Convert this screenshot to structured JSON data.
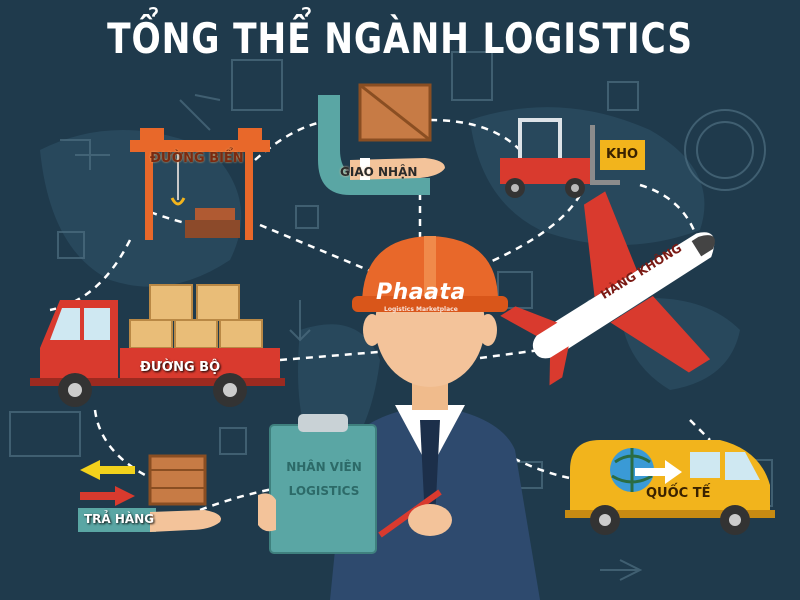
{
  "header": {
    "title": "TỔNG THỂ NGÀNH LOGISTICS"
  },
  "nodes": {
    "port": "ĐƯỜNG BIỂN",
    "forwarding": "GIAO NHẬN",
    "warehouse": "KHO",
    "air": "HÀNG KHÔNG",
    "road": "ĐƯỜNG BỘ",
    "international": "QUỐC TẾ",
    "returns": "TRẢ HÀNG"
  },
  "center": {
    "brand": "Phaata",
    "brand_tagline": "Logistics Marketplace",
    "clipboard_line1": "NHÂN VIÊN",
    "clipboard_line2": "LOGISTICS"
  },
  "colors": {
    "background": "#1f3a4c",
    "accent_orange": "#e8682a",
    "truck_red": "#d93a2e",
    "van_yellow": "#f2b41c",
    "clipboard_teal": "#5aa6a4"
  }
}
